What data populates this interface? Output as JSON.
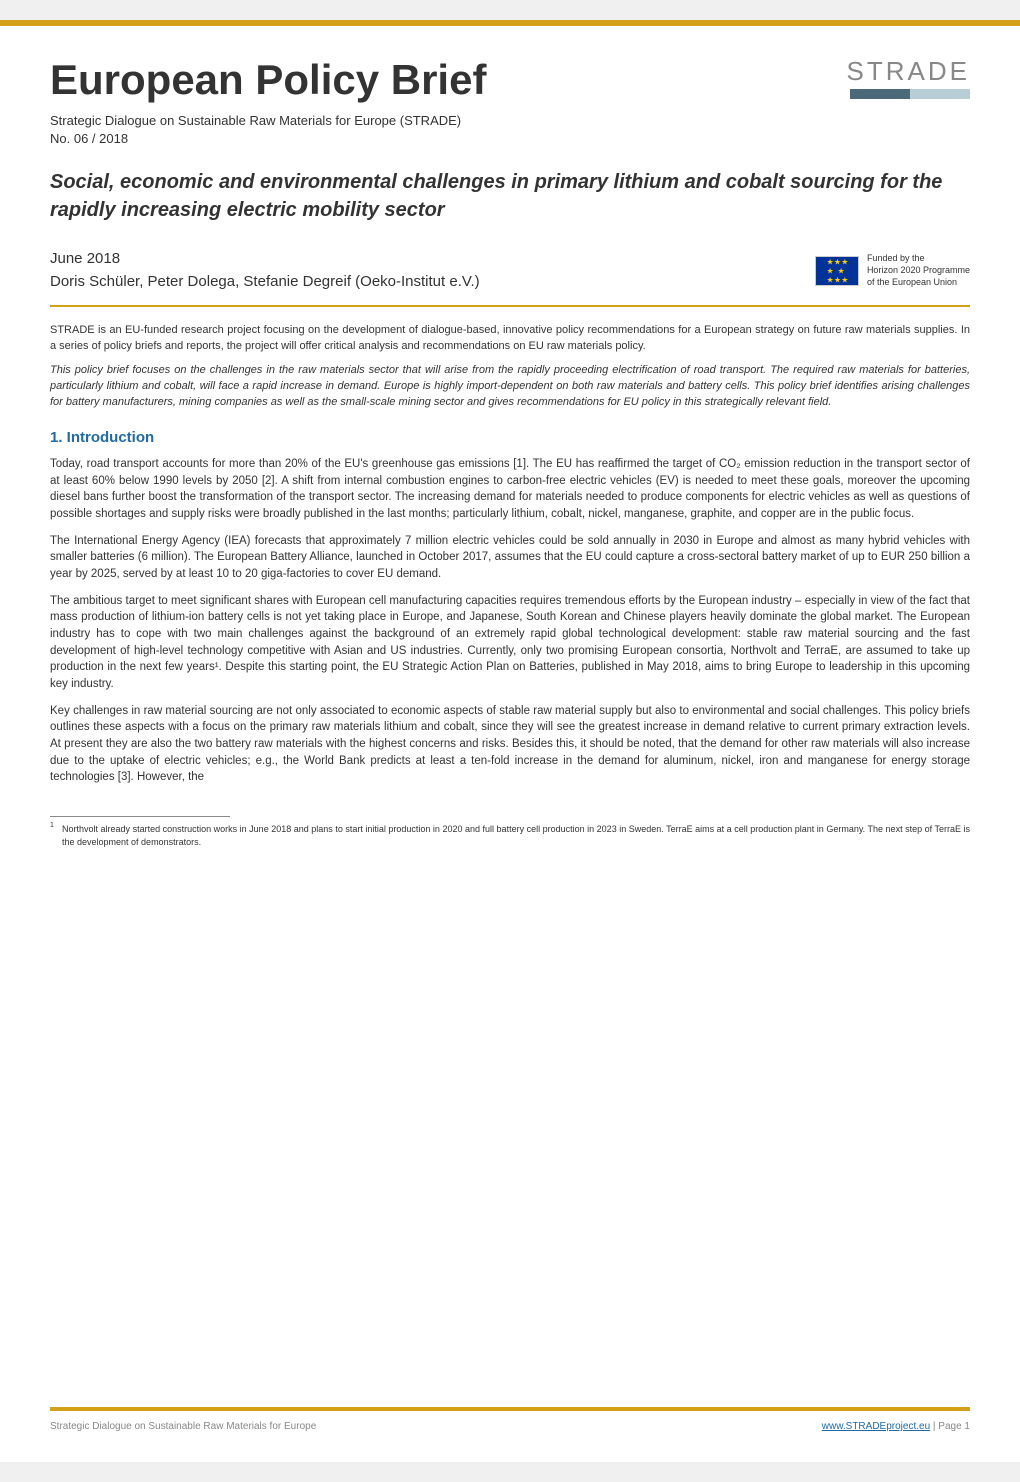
{
  "colors": {
    "accent_bar": "#d4a017",
    "heading_blue": "#1e6ba8",
    "text_dark": "#333333",
    "text_gray": "#888888",
    "eu_flag_bg": "#003399",
    "eu_stars": "#ffcc00",
    "strade_bar_dark": "#4a6a7a",
    "strade_bar_light": "#b8cdd6"
  },
  "header": {
    "title": "European Policy Brief",
    "logo_text": "STRADE"
  },
  "subtitle": {
    "line1": "Strategic Dialogue on Sustainable Raw Materials for Europe (STRADE)",
    "line2": "No. 06 / 2018"
  },
  "doc_heading": "Social, economic and environmental challenges in primary lithium and cobalt sourcing for the rapidly increasing electric mobility sector",
  "meta": {
    "date": "June 2018",
    "authors": "Doris Schüler, Peter Dolega, Stefanie Degreif (Oeko-Institut e.V.)"
  },
  "funding": {
    "line1": "Funded by the",
    "line2": "Horizon 2020 Programme",
    "line3": "of the European Union"
  },
  "abstract": {
    "plain": "STRADE is an EU-funded research project focusing on the development of dialogue-based, innovative policy recommendations for a European strategy on future raw materials supplies. In a series of policy briefs and reports, the project will offer critical analysis and recommendations on EU raw materials policy.",
    "italic": "This policy brief focuses on the challenges in the raw materials sector that will arise from the rapidly proceeding electrification of road transport. The required raw materials for batteries, particularly lithium and cobalt, will face a rapid increase in demand. Europe is highly import-dependent on both raw materials and battery cells. This policy brief identifies arising challenges for battery manufacturers, mining companies as well as the small-scale mining sector and gives recommendations for EU policy in this strategically relevant field."
  },
  "section1": {
    "heading": "1. Introduction",
    "p1": "Today, road transport accounts for more than 20% of the EU's greenhouse gas emissions [1]. The EU has reaffirmed the target of CO₂ emission reduction in the transport sector of at least 60% below 1990 levels by 2050 [2]. A shift from internal combustion engines to carbon-free electric vehicles (EV) is needed to meet these goals, moreover the upcoming diesel bans further boost the transformation of the transport sector. The increasing demand for materials needed to produce components for electric vehicles as well as questions of possible shortages and supply risks were broadly published in the last months; particularly lithium, cobalt, nickel, manganese, graphite, and copper are in the public focus.",
    "p2": "The International Energy Agency (IEA) forecasts that approximately 7 million electric vehicles could be sold annually in 2030 in Europe and almost as many hybrid vehicles with smaller batteries (6 million). The European Battery Alliance, launched in October 2017, assumes that the EU could capture a cross-sectoral battery market of up to EUR 250 billion a year by 2025, served by at least 10 to 20 giga-factories to cover EU demand.",
    "p3": "The ambitious target to meet significant shares with European cell manufacturing capacities requires tremendous efforts by the European industry – especially in view of the fact that mass production of lithium-ion battery cells is not yet taking place in Europe, and Japanese, South Korean and Chinese players heavily dominate the global market. The European industry has to cope with two main challenges against the background of an extremely rapid global technological development: stable raw material sourcing and the fast development of high-level technology competitive with Asian and US industries. Currently, only two promising European consortia, Northvolt and TerraE, are assumed to take up production in the next few years¹. Despite this starting point, the EU Strategic Action Plan on Batteries, published in May 2018, aims to bring Europe to leadership in this upcoming key industry.",
    "p4": "Key challenges in raw material sourcing are not only associated to economic aspects of stable raw material supply but also to environmental and social challenges. This policy briefs outlines these aspects with a focus on the primary raw materials lithium and cobalt, since they will see the greatest increase in demand relative to current primary extraction levels. At present they are also the two battery raw materials with the highest concerns and risks. Besides this, it should be noted, that the demand for other raw materials will also increase due to the uptake of electric vehicles; e.g., the World Bank predicts at least a ten-fold increase in the demand for aluminum, nickel, iron and manganese for energy storage technologies [3]. However, the"
  },
  "footnote": {
    "num": "1",
    "text": "Northvolt already started construction works in June 2018 and plans to start initial production in 2020 and full battery cell production in 2023 in Sweden. TerraE aims at a cell production plant in Germany. The next step of TerraE is the development of demonstrators."
  },
  "footer": {
    "left": "Strategic Dialogue on Sustainable Raw Materials for Europe",
    "link_text": "www.STRADEproject.eu",
    "page_text": " | Page 1"
  }
}
